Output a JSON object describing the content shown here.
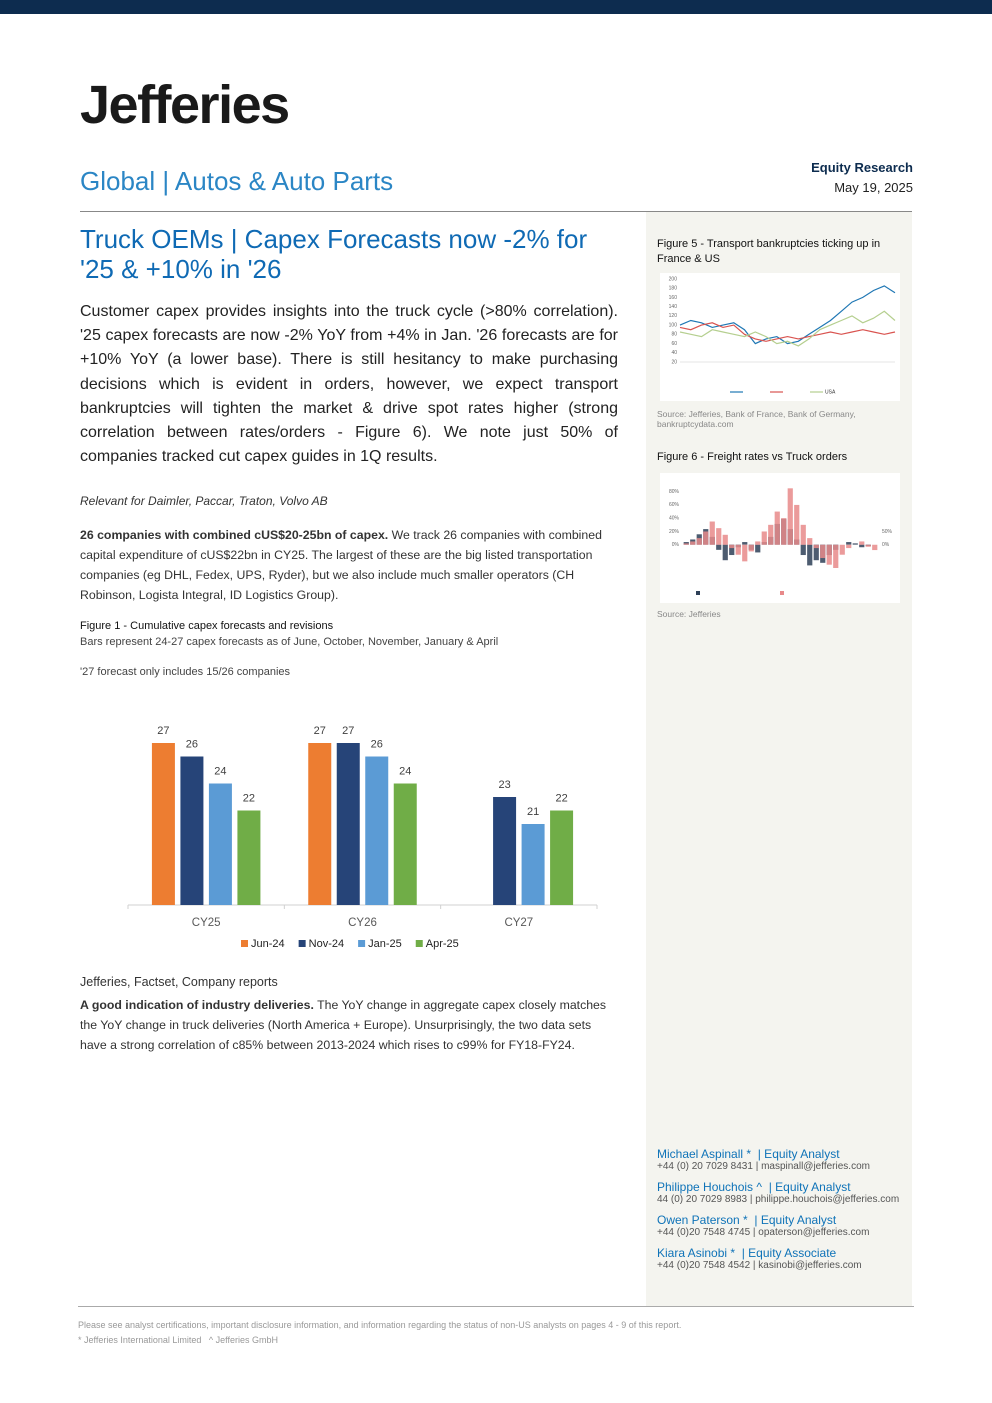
{
  "header": {
    "brand": "Jefferies",
    "sector": "Global | Autos & Auto Parts",
    "report_type": "Equity Research",
    "date": "May 19, 2025"
  },
  "article": {
    "title": "Truck OEMs | Capex Forecasts now -2% for '25 & +10% in '26",
    "summary": "Customer capex provides insights into the truck cycle (>80% correlation). '25 capex forecasts are now -2% YoY from +4% in Jan. '26 forecasts are for +10% YoY (a lower base). There is still hesitancy to make purchasing decisions which is evident in orders, however, we expect transport bankruptcies will tighten the market & drive spot rates higher (strong correlation between rates/orders - Figure 6). We note just 50% of companies tracked cut capex guides in 1Q results.",
    "relevant": "Relevant for Daimler, Paccar, Traton, Volvo AB",
    "para1_lead": "26 companies with combined cUS$20-25bn of capex.",
    "para1_body": " We track 26 companies with combined capital expenditure of cUS$22bn in CY25. The largest of these are the big listed transportation companies (eg DHL, Fedex, UPS, Ryder), but we also include much smaller operators (CH Robinson, Logista Integral, ID Logistics Group).",
    "figure1_caption": "Figure 1 - Cumulative capex forecasts and revisions",
    "figure1_subtitle": "Bars represent 24-27 capex forecasts as of June, October, November, January & April",
    "figure1_note": "'27 forecast only includes 15/26 companies",
    "figure1_source": "Jefferies, Factset, Company reports",
    "para2_lead": "A good indication of industry deliveries.",
    "para2_body": " The YoY change in aggregate capex closely matches the YoY change in truck deliveries (North America + Europe). Unsurprisingly, the two data sets have a strong correlation of c85% between 2013-2024 which rises to c99% for FY18-FY24."
  },
  "sidebar": {
    "figure5_caption": "Figure 5 - Transport bankruptcies ticking up in France & US",
    "figure5_source": "Source: Jefferies, Bank of France, Bank of Germany, bankruptcydata.com",
    "figure6_caption": "Figure 6 - Freight rates vs Truck orders",
    "figure6_source": "Source: Jefferies",
    "analysts": [
      {
        "name": "Michael Aspinall *",
        "role": "| Equity Analyst",
        "contact": "+44 (0) 20 7029 8431 | maspinall@jefferies.com"
      },
      {
        "name": "Philippe Houchois ^",
        "role": "| Equity Analyst",
        "contact": "44 (0) 20 7029 8983 | philippe.houchois@jefferies.com"
      },
      {
        "name": "Owen Paterson *",
        "role": "| Equity Analyst",
        "contact": "+44 (0)20 7548 4745 | opaterson@jefferies.com"
      },
      {
        "name": "Kiara Asinobi *",
        "role": "| Equity Associate",
        "contact": "+44 (0)20 7548 4542 | kasinobi@jefferies.com"
      }
    ]
  },
  "footer": {
    "disclaimer": "Please see analyst certifications, important disclosure information, and information regarding the status of non-US analysts on pages 4 - 9 of this report.",
    "entities": "* Jefferies International Limited   ^ Jefferies GmbH"
  },
  "chart_data": [
    {
      "type": "bar",
      "categories": [
        "CY25",
        "CY26",
        "CY27"
      ],
      "ylim": [
        15,
        30
      ],
      "series": [
        {
          "name": "Jun-24",
          "color": "#ed7d31",
          "values": [
            27,
            27,
            null
          ]
        },
        {
          "name": "Nov-24",
          "color": "#264478",
          "values": [
            26,
            27,
            23
          ]
        },
        {
          "name": "Jan-25",
          "color": "#5b9bd5",
          "values": [
            24,
            26,
            21
          ]
        },
        {
          "name": "Apr-25",
          "color": "#70ad47",
          "values": [
            22,
            24,
            22
          ]
        }
      ]
    },
    {
      "type": "line",
      "ylim": [
        20,
        200
      ],
      "yticks": [
        20,
        40,
        60,
        80,
        100,
        120,
        140,
        160,
        180,
        200
      ],
      "series": [
        {
          "color": "#1f77b4",
          "values": [
            100,
            110,
            105,
            95,
            100,
            105,
            90,
            60,
            70,
            75,
            60,
            65,
            80,
            95,
            110,
            130,
            150,
            160,
            175,
            185,
            170
          ]
        },
        {
          "color": "#d9534f",
          "values": [
            95,
            90,
            100,
            105,
            95,
            100,
            80,
            70,
            65,
            70,
            75,
            70,
            75,
            80,
            85,
            80,
            85,
            90,
            85,
            80,
            85
          ]
        },
        {
          "name": "USA",
          "color": "#b5cf8f",
          "values": [
            85,
            80,
            75,
            90,
            85,
            80,
            75,
            85,
            75,
            60,
            65,
            55,
            70,
            90,
            100,
            110,
            120,
            105,
            115,
            130,
            110
          ]
        }
      ]
    },
    {
      "type": "bar",
      "ylim": [
        -35,
        90
      ],
      "y2lim": [
        -90,
        230
      ],
      "yticks": [
        {
          "value": 0,
          "label": "0%"
        },
        {
          "value": 20,
          "label": "20%"
        },
        {
          "value": 40,
          "label": "40%"
        },
        {
          "value": 60,
          "label": "60%"
        },
        {
          "value": 80,
          "label": "80%"
        }
      ],
      "y2ticks": [
        {
          "value": 0,
          "label": "0%"
        },
        {
          "value": 50,
          "label": "50%"
        }
      ],
      "series": [
        {
          "color": "#2e4057",
          "axis": "y2",
          "values": [
            10,
            20,
            40,
            60,
            30,
            -20,
            -60,
            -40,
            -10,
            10,
            -20,
            -30,
            10,
            30,
            80,
            100,
            60,
            20,
            -40,
            -80,
            -60,
            -70,
            -40,
            -20,
            0,
            10,
            5,
            -10,
            -5,
            0
          ]
        },
        {
          "color": "#e8898a",
          "values": [
            2,
            5,
            10,
            20,
            35,
            25,
            15,
            -5,
            -15,
            -25,
            -10,
            5,
            20,
            30,
            50,
            40,
            85,
            60,
            30,
            10,
            -5,
            -20,
            -30,
            -35,
            -15,
            -5,
            0,
            5,
            -3,
            -8
          ]
        }
      ]
    }
  ]
}
